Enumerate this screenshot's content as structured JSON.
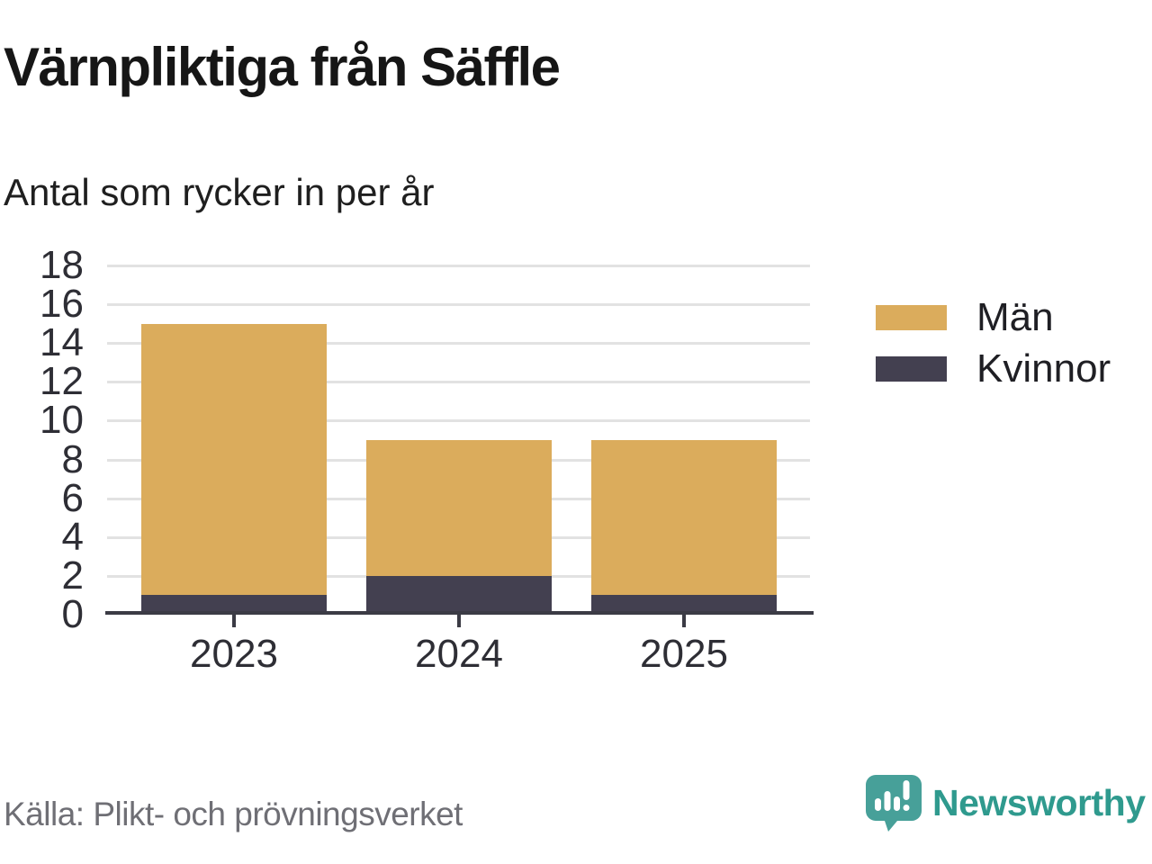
{
  "chart_data": {
    "type": "bar",
    "stacked": true,
    "title": "Värnpliktiga från Säffle",
    "subtitle": "Antal som rycker in per år",
    "xlabel": "",
    "ylabel": "",
    "categories": [
      "2023",
      "2024",
      "2025"
    ],
    "series": [
      {
        "name": "Män",
        "id": "men",
        "color": "#DBAC5C",
        "values": [
          14,
          7,
          8
        ]
      },
      {
        "name": "Kvinnor",
        "id": "women",
        "color": "#434050",
        "values": [
          1,
          2,
          1
        ]
      }
    ],
    "stack_order_bottom_to_top": [
      "Kvinnor",
      "Män"
    ],
    "totals": [
      15,
      9,
      9
    ],
    "ylim": [
      0,
      18
    ],
    "yticks": [
      0,
      2,
      4,
      6,
      8,
      10,
      12,
      14,
      16,
      18
    ],
    "grid": true,
    "legend_position": "right"
  },
  "footer": {
    "source": "Källa: Plikt- och prövningsverket",
    "brand": "Newsworthy"
  },
  "colors": {
    "men_gold": "#DBAC5C",
    "women_dark": "#434050",
    "axis": "#3B3B45",
    "grid": "#E2E2E2",
    "tick_text": "#2E2E35",
    "source_text": "#6F6F75",
    "brand_teal": "#2F9A8E",
    "icon_teal": "#47A099"
  }
}
